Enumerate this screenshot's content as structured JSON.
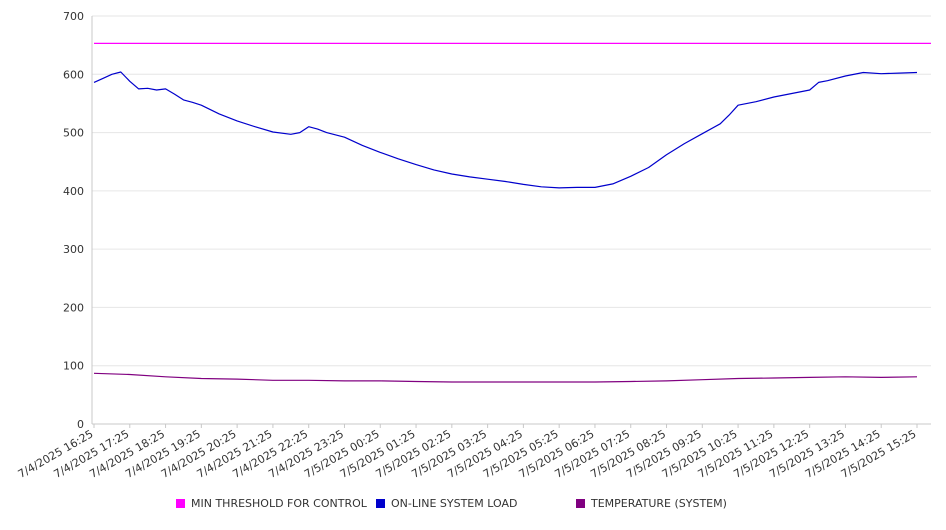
{
  "chart_data": {
    "type": "line",
    "title": "",
    "xlabel": "",
    "ylabel": "",
    "ylim": [
      0,
      700
    ],
    "yticks": [
      0,
      100,
      200,
      300,
      400,
      500,
      600,
      700
    ],
    "grid": true,
    "legend_position": "bottom",
    "x_tick_labels": [
      "7/4/2025 16:25",
      "7/4/2025 17:25",
      "7/4/2025 18:25",
      "7/4/2025 19:25",
      "7/4/2025 20:25",
      "7/4/2025 21:25",
      "7/4/2025 22:25",
      "7/4/2025 23:25",
      "7/5/2025 00:25",
      "7/5/2025 01:25",
      "7/5/2025 02:25",
      "7/5/2025 03:25",
      "7/5/2025 04:25",
      "7/5/2025 05:25",
      "7/5/2025 06:25",
      "7/5/2025 07:25",
      "7/5/2025 08:25",
      "7/5/2025 09:25",
      "7/5/2025 10:25",
      "7/5/2025 11:25",
      "7/5/2025 12:25",
      "7/5/2025 13:25",
      "7/5/2025 14:25",
      "7/5/2025 15:25"
    ],
    "series": [
      {
        "name": "MIN THRESHOLD FOR CONTROL",
        "color": "#ff00ff",
        "values": [
          {
            "x": "7/4/2025 16:25",
            "y": 653
          },
          {
            "x": "7/5/2025 15:25",
            "y": 653
          }
        ]
      },
      {
        "name": "ON-LINE SYSTEM LOAD",
        "color": "#0000cc",
        "values": [
          {
            "x": "7/4/2025 16:25",
            "y": 586
          },
          {
            "x": "7/4/2025 16:40",
            "y": 593
          },
          {
            "x": "7/4/2025 16:55",
            "y": 600
          },
          {
            "x": "7/4/2025 17:10",
            "y": 604
          },
          {
            "x": "7/4/2025 17:25",
            "y": 588
          },
          {
            "x": "7/4/2025 17:40",
            "y": 575
          },
          {
            "x": "7/4/2025 17:55",
            "y": 576
          },
          {
            "x": "7/4/2025 18:10",
            "y": 573
          },
          {
            "x": "7/4/2025 18:25",
            "y": 575
          },
          {
            "x": "7/4/2025 18:40",
            "y": 566
          },
          {
            "x": "7/4/2025 18:55",
            "y": 556
          },
          {
            "x": "7/4/2025 19:10",
            "y": 552
          },
          {
            "x": "7/4/2025 19:25",
            "y": 547
          },
          {
            "x": "7/4/2025 19:55",
            "y": 532
          },
          {
            "x": "7/4/2025 20:25",
            "y": 520
          },
          {
            "x": "7/4/2025 20:55",
            "y": 510
          },
          {
            "x": "7/4/2025 21:25",
            "y": 501
          },
          {
            "x": "7/4/2025 21:55",
            "y": 497
          },
          {
            "x": "7/4/2025 22:10",
            "y": 500
          },
          {
            "x": "7/4/2025 22:25",
            "y": 510
          },
          {
            "x": "7/4/2025 22:40",
            "y": 506
          },
          {
            "x": "7/4/2025 22:55",
            "y": 500
          },
          {
            "x": "7/4/2025 23:25",
            "y": 492
          },
          {
            "x": "7/4/2025 23:55",
            "y": 478
          },
          {
            "x": "7/5/2025 00:25",
            "y": 466
          },
          {
            "x": "7/5/2025 00:55",
            "y": 455
          },
          {
            "x": "7/5/2025 01:25",
            "y": 445
          },
          {
            "x": "7/5/2025 01:55",
            "y": 436
          },
          {
            "x": "7/5/2025 02:25",
            "y": 429
          },
          {
            "x": "7/5/2025 02:55",
            "y": 424
          },
          {
            "x": "7/5/2025 03:25",
            "y": 420
          },
          {
            "x": "7/5/2025 03:55",
            "y": 416
          },
          {
            "x": "7/5/2025 04:25",
            "y": 411
          },
          {
            "x": "7/5/2025 04:55",
            "y": 407
          },
          {
            "x": "7/5/2025 05:25",
            "y": 405
          },
          {
            "x": "7/5/2025 05:55",
            "y": 406
          },
          {
            "x": "7/5/2025 06:25",
            "y": 406
          },
          {
            "x": "7/5/2025 06:55",
            "y": 412
          },
          {
            "x": "7/5/2025 07:25",
            "y": 425
          },
          {
            "x": "7/5/2025 07:55",
            "y": 440
          },
          {
            "x": "7/5/2025 08:25",
            "y": 462
          },
          {
            "x": "7/5/2025 08:55",
            "y": 481
          },
          {
            "x": "7/5/2025 09:25",
            "y": 498
          },
          {
            "x": "7/5/2025 09:55",
            "y": 515
          },
          {
            "x": "7/5/2025 10:10",
            "y": 530
          },
          {
            "x": "7/5/2025 10:25",
            "y": 547
          },
          {
            "x": "7/5/2025 10:55",
            "y": 553
          },
          {
            "x": "7/5/2025 11:25",
            "y": 561
          },
          {
            "x": "7/5/2025 11:55",
            "y": 567
          },
          {
            "x": "7/5/2025 12:25",
            "y": 573
          },
          {
            "x": "7/5/2025 12:40",
            "y": 586
          },
          {
            "x": "7/5/2025 12:55",
            "y": 589
          },
          {
            "x": "7/5/2025 13:25",
            "y": 597
          },
          {
            "x": "7/5/2025 13:55",
            "y": 603
          },
          {
            "x": "7/5/2025 14:25",
            "y": 601
          },
          {
            "x": "7/5/2025 14:55",
            "y": 602
          },
          {
            "x": "7/5/2025 15:25",
            "y": 603
          }
        ]
      },
      {
        "name": "TEMPERATURE (SYSTEM)",
        "color": "#800080",
        "values": [
          {
            "x": "7/4/2025 16:25",
            "y": 87
          },
          {
            "x": "7/4/2025 17:25",
            "y": 85
          },
          {
            "x": "7/4/2025 18:25",
            "y": 81
          },
          {
            "x": "7/4/2025 19:25",
            "y": 78
          },
          {
            "x": "7/4/2025 20:25",
            "y": 77
          },
          {
            "x": "7/4/2025 21:25",
            "y": 75
          },
          {
            "x": "7/4/2025 22:25",
            "y": 75
          },
          {
            "x": "7/4/2025 23:25",
            "y": 74
          },
          {
            "x": "7/5/2025 00:25",
            "y": 74
          },
          {
            "x": "7/5/2025 01:25",
            "y": 73
          },
          {
            "x": "7/5/2025 02:25",
            "y": 72
          },
          {
            "x": "7/5/2025 03:25",
            "y": 72
          },
          {
            "x": "7/5/2025 04:25",
            "y": 72
          },
          {
            "x": "7/5/2025 05:25",
            "y": 72
          },
          {
            "x": "7/5/2025 06:25",
            "y": 72
          },
          {
            "x": "7/5/2025 07:25",
            "y": 73
          },
          {
            "x": "7/5/2025 08:25",
            "y": 74
          },
          {
            "x": "7/5/2025 09:25",
            "y": 76
          },
          {
            "x": "7/5/2025 10:25",
            "y": 78
          },
          {
            "x": "7/5/2025 11:25",
            "y": 79
          },
          {
            "x": "7/5/2025 12:25",
            "y": 80
          },
          {
            "x": "7/5/2025 13:25",
            "y": 81
          },
          {
            "x": "7/5/2025 14:25",
            "y": 80
          },
          {
            "x": "7/5/2025 15:25",
            "y": 81
          }
        ]
      }
    ]
  }
}
